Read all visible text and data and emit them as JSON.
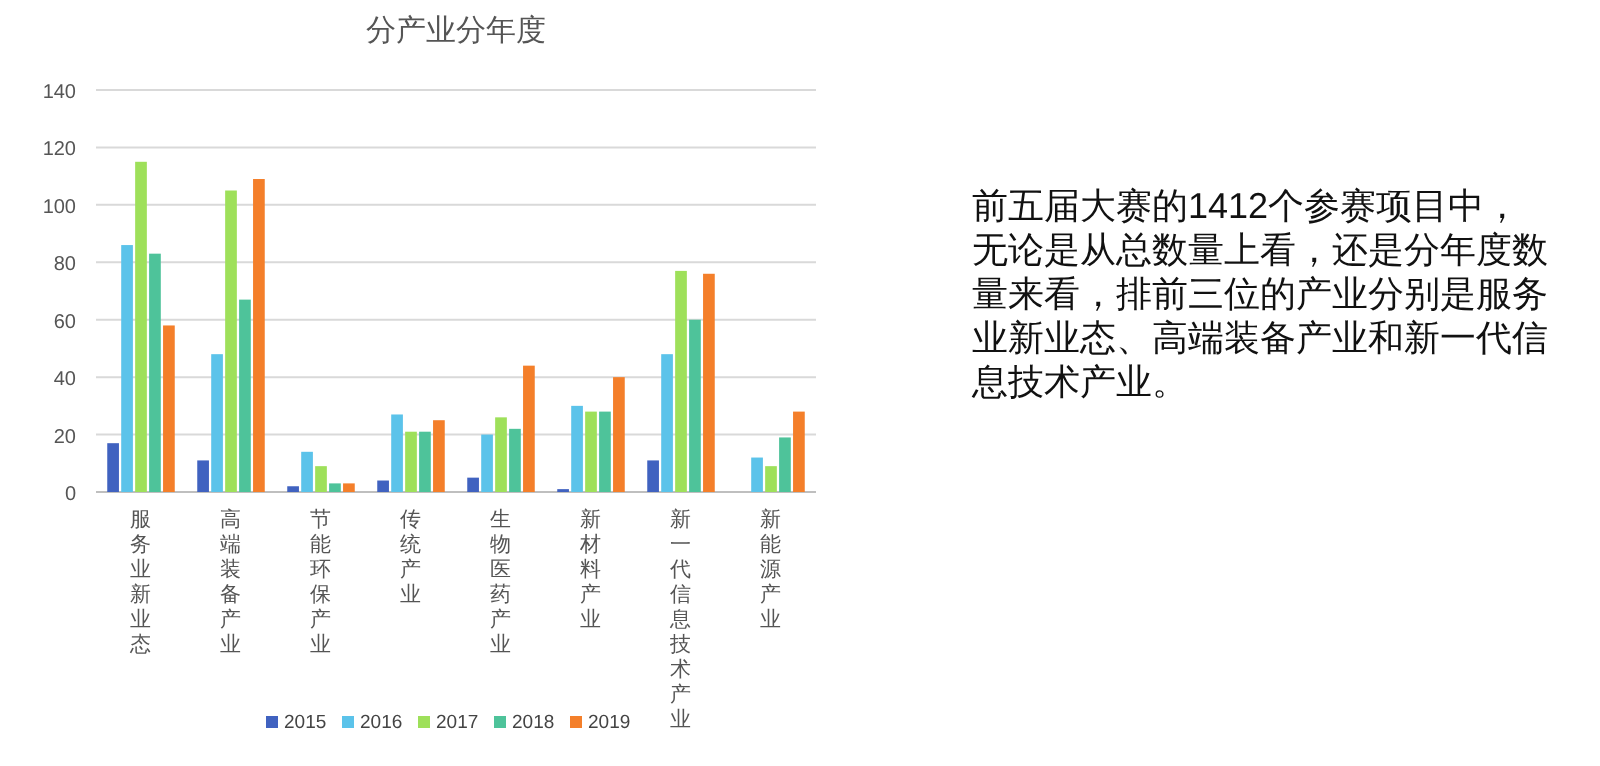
{
  "chart_data": {
    "type": "bar",
    "title": "分产业分年度",
    "categories": [
      "服务业新业态",
      "高端装备产业",
      "节能环保产业",
      "传统产业",
      "生物医药产业",
      "新材料产业",
      "新一代信息技术产业",
      "新能源产业"
    ],
    "series": [
      {
        "name": "2015",
        "color": "#4062c0",
        "values": [
          17,
          11,
          2,
          4,
          5,
          1,
          11,
          null
        ]
      },
      {
        "name": "2016",
        "color": "#5bc3ea",
        "values": [
          86,
          48,
          14,
          27,
          20,
          30,
          48,
          12
        ]
      },
      {
        "name": "2017",
        "color": "#9ee05a",
        "values": [
          115,
          105,
          9,
          21,
          26,
          28,
          77,
          9
        ]
      },
      {
        "name": "2018",
        "color": "#4ec39a",
        "values": [
          83,
          67,
          3,
          21,
          22,
          28,
          60,
          19
        ]
      },
      {
        "name": "2019",
        "color": "#f47f2a",
        "values": [
          58,
          109,
          3,
          25,
          44,
          40,
          76,
          28
        ]
      }
    ],
    "ylim": [
      0,
      140
    ],
    "yticks": [
      0,
      20,
      40,
      60,
      80,
      100,
      120,
      140
    ],
    "grid": "y",
    "legend": "bottom",
    "annotations": [
      "前五届大赛的1412个参赛项目中，无论是从总数量上看，还是分年度数量来看，排前三位的产业分别是服务业新业态、高端装备产业和新一代信息技术产业。"
    ]
  }
}
